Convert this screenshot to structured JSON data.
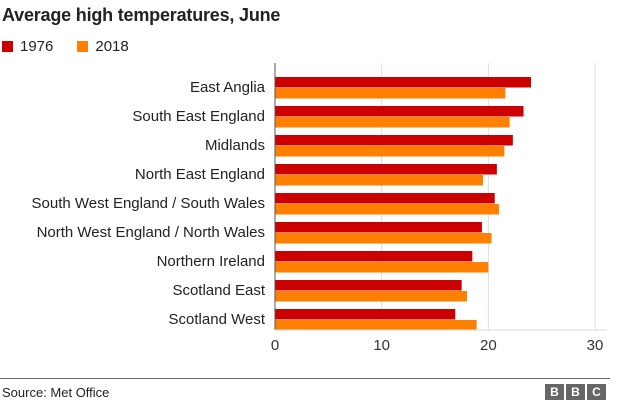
{
  "chart_data": {
    "type": "bar",
    "orientation": "horizontal",
    "title": "Average high temperatures, June",
    "categories": [
      "East Anglia",
      "South East England",
      "Midlands",
      "North East England",
      "South West England / South Wales",
      "North West England / North Wales",
      "Northern Ireland",
      "Scotland East",
      "Scotland West"
    ],
    "series": [
      {
        "name": "1976",
        "color": "#cc0000",
        "values": [
          24.0,
          23.3,
          22.3,
          20.8,
          20.6,
          19.4,
          18.5,
          17.5,
          16.9
        ]
      },
      {
        "name": "2018",
        "color": "#ff7f00",
        "values": [
          21.6,
          22.0,
          21.5,
          19.5,
          21.0,
          20.3,
          20.0,
          18.0,
          18.9
        ]
      }
    ],
    "xlim": [
      0,
      30
    ],
    "xticks": [
      "0",
      "10",
      "20",
      "30"
    ],
    "xlabel": "",
    "ylabel": "",
    "grid": true,
    "legend": "top-left"
  },
  "footer": {
    "source": "Source: Met Office",
    "logo": [
      "B",
      "B",
      "C"
    ]
  }
}
